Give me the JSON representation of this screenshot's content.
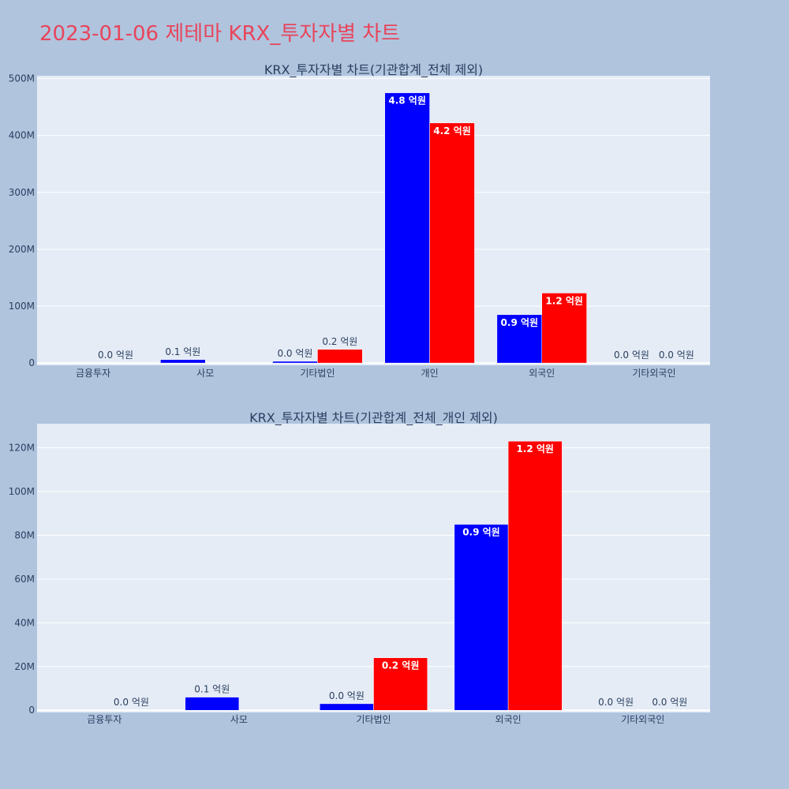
{
  "page": {
    "title": "2023-01-06 제테마 KRX_투자자별 차트"
  },
  "colors": {
    "buy": "#0000ff",
    "sell": "#ff0000",
    "plot_bg": "#e5ecf6",
    "page_bg": "#b0c4de",
    "title": "#e8455b"
  },
  "chart_data": [
    {
      "type": "bar",
      "title": "KRX_투자자별 차트(기관합계_전체 제외)",
      "categories": [
        "금융투자",
        "사모",
        "기타법인",
        "개인",
        "외국인",
        "기타외국인"
      ],
      "series": [
        {
          "values": [
            0,
            6000000,
            3000000,
            475000000,
            85000000,
            0
          ],
          "labels": [
            "",
            "0.1 억원",
            "0.0 억원",
            "4.8 억원",
            "0.9 억원",
            "0.0 억원"
          ]
        },
        {
          "values": [
            0,
            0,
            24000000,
            422000000,
            123000000,
            0
          ],
          "labels": [
            "0.0 억원",
            "",
            "0.2 억원",
            "4.2 억원",
            "1.2 억원",
            "0.0 억원"
          ]
        }
      ],
      "yticks": [
        "0",
        "100M",
        "200M",
        "300M",
        "400M",
        "500M"
      ],
      "ylim": [
        -4000000,
        505000000
      ],
      "ytick_values": [
        0,
        100000000,
        200000000,
        300000000,
        400000000,
        500000000
      ],
      "grid": true
    },
    {
      "type": "bar",
      "title": "KRX_투자자별 차트(기관합계_전체_개인 제외)",
      "categories": [
        "금융투자",
        "사모",
        "기타법인",
        "외국인",
        "기타외국인"
      ],
      "series": [
        {
          "values": [
            0,
            6000000,
            3000000,
            85000000,
            0
          ],
          "labels": [
            "",
            "0.1 억원",
            "0.0 억원",
            "0.9 억원",
            "0.0 억원"
          ]
        },
        {
          "values": [
            0,
            0,
            24000000,
            123000000,
            0
          ],
          "labels": [
            "0.0 억원",
            "",
            "0.2 억원",
            "1.2 억원",
            "0.0 억원"
          ]
        }
      ],
      "yticks": [
        "0",
        "20M",
        "40M",
        "60M",
        "80M",
        "100M",
        "120M"
      ],
      "ylim": [
        -1000000,
        131000000
      ],
      "ytick_values": [
        0,
        20000000,
        40000000,
        60000000,
        80000000,
        100000000,
        120000000
      ],
      "grid": true
    }
  ]
}
